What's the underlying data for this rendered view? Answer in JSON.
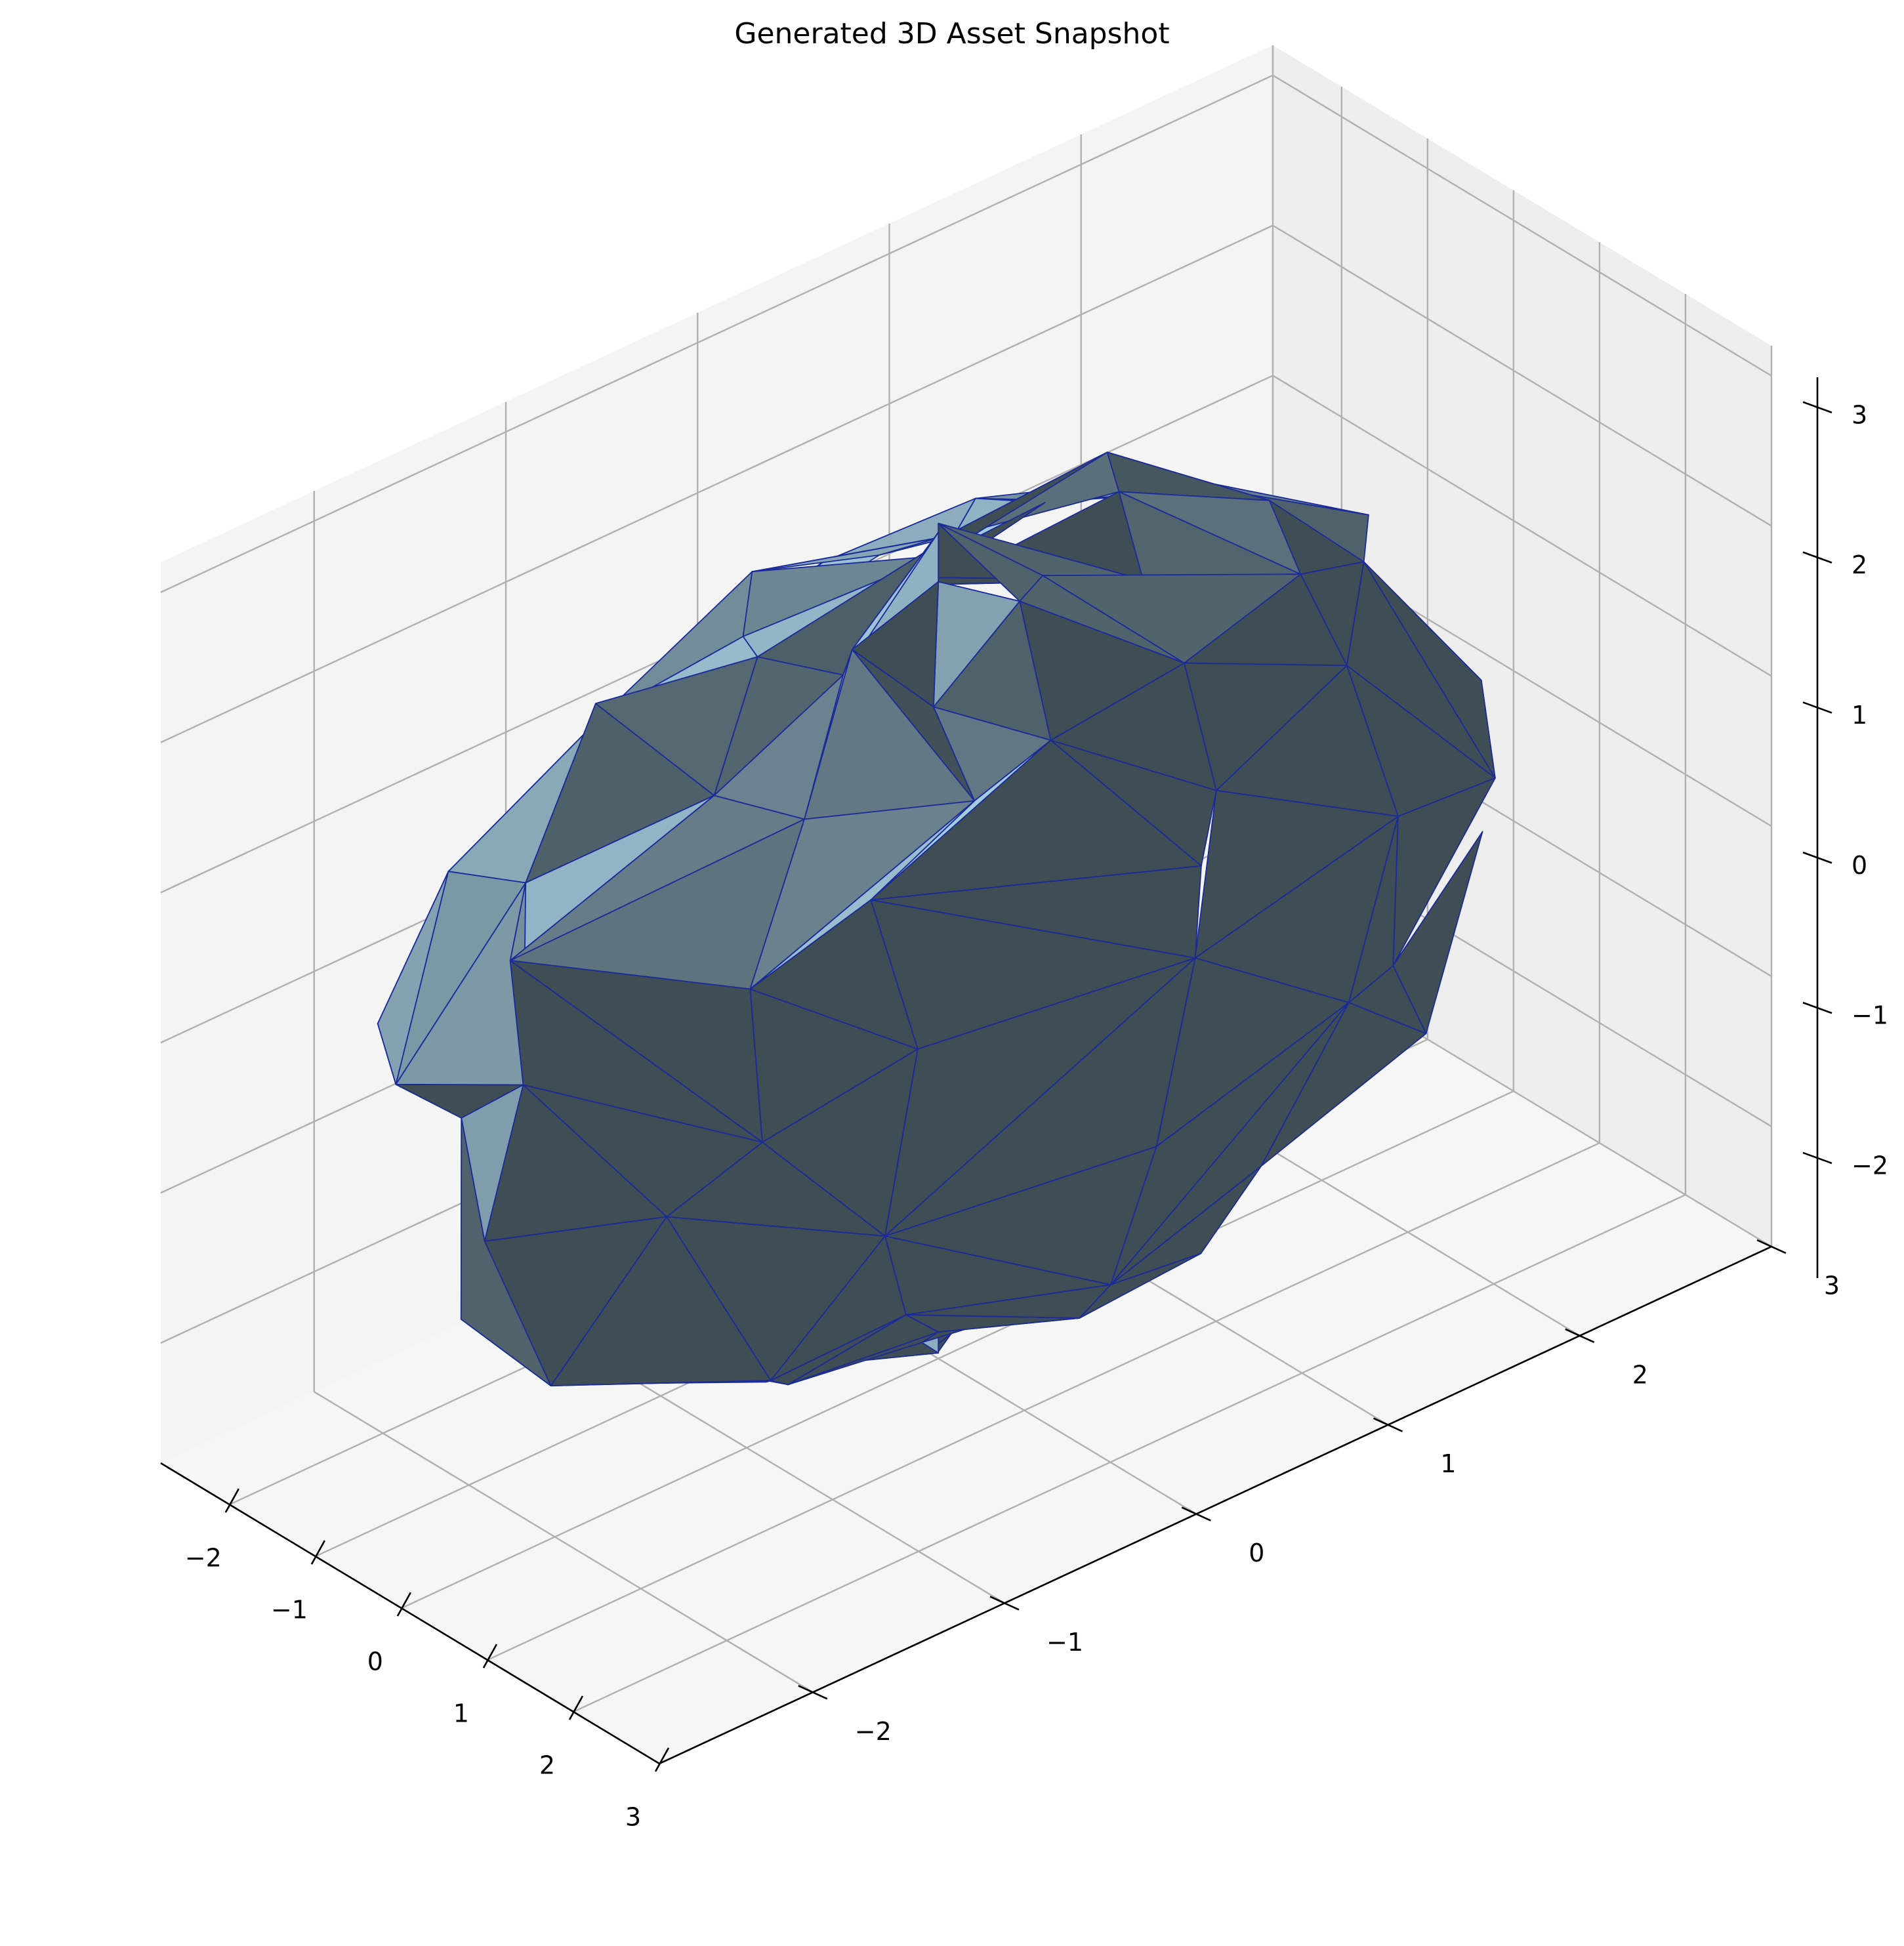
{
  "chart_data": {
    "type": "mesh3d",
    "title": "Generated 3D Asset Snapshot",
    "xlabel": "",
    "ylabel": "",
    "zlabel": "",
    "x_ticks": [
      "−2",
      "−1",
      "0",
      "1",
      "2",
      "3"
    ],
    "y_ticks": [
      "−2",
      "−1",
      "0",
      "1",
      "2",
      "3"
    ],
    "z_ticks": [
      "−2",
      "−1",
      "0",
      "1",
      "2",
      "3"
    ],
    "xlim": [
      -2.8,
      3.0
    ],
    "ylim": [
      -2.8,
      3.0
    ],
    "zlim": [
      -2.8,
      3.2
    ],
    "grid": true,
    "mesh": {
      "shape": "irregular low-poly sphere",
      "radius_approx": 2.6,
      "center": [
        0,
        0,
        0
      ],
      "face_color": "#a6cce0",
      "edge_color": "#1a2a9a",
      "shading": true
    },
    "pane_colors": {
      "left": "#f4f4f4",
      "right": "#eeeeee",
      "floor": "#f6f6f6"
    }
  }
}
